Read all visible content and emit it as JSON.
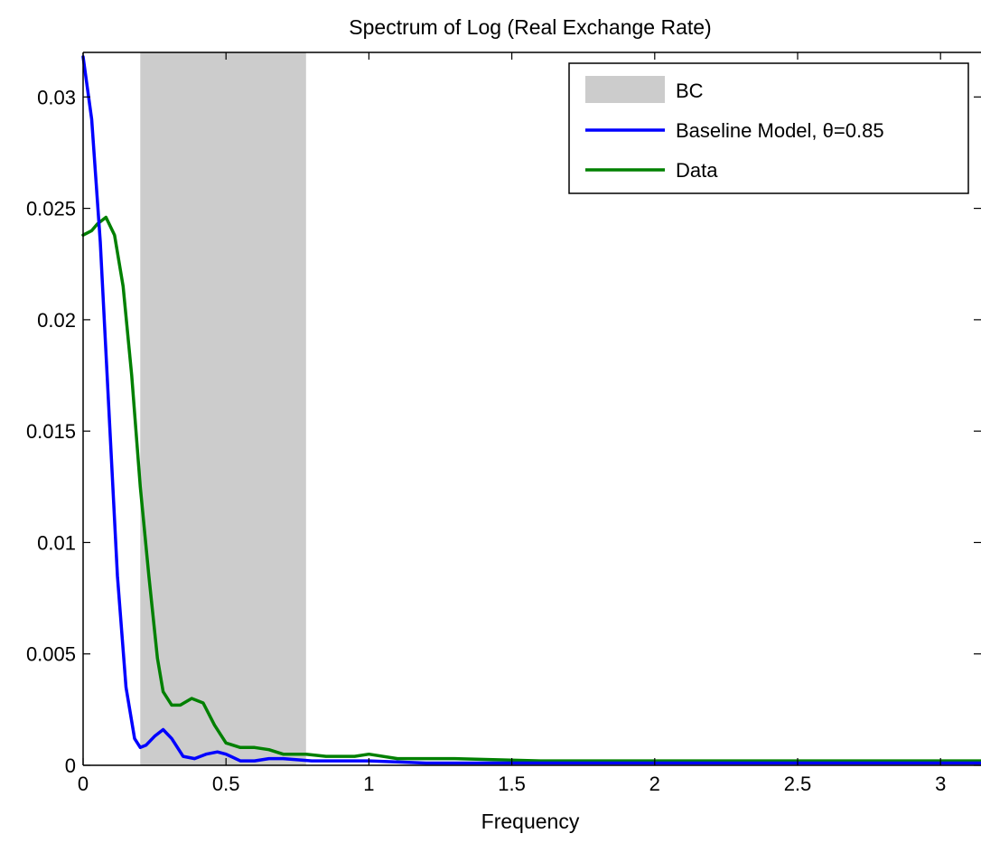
{
  "chart_data": {
    "type": "line",
    "title": "Spectrum of Log (Real Exchange Rate)",
    "xlabel": "Frequency",
    "ylabel": "",
    "xlim": [
      0,
      3.1416
    ],
    "ylim": [
      0,
      0.032
    ],
    "x_ticks": [
      0,
      0.5,
      1,
      1.5,
      2,
      2.5,
      3
    ],
    "x_tick_labels": [
      "0",
      "0.5",
      "1",
      "1.5",
      "2",
      "2.5",
      "3"
    ],
    "y_ticks": [
      0,
      0.005,
      0.01,
      0.015,
      0.02,
      0.025,
      0.03
    ],
    "y_tick_labels": [
      "0",
      "0.005",
      "0.01",
      "0.015",
      "0.02",
      "0.025",
      "0.03"
    ],
    "grid": false,
    "legend_position": "top-right",
    "band": {
      "name": "BC",
      "x_range": [
        0.2,
        0.78
      ],
      "color": "#cccccc"
    },
    "series": [
      {
        "name": "Baseline Model, θ=0.85",
        "color": "#0000ff",
        "x": [
          0,
          0.03,
          0.06,
          0.09,
          0.12,
          0.15,
          0.18,
          0.2,
          0.22,
          0.25,
          0.28,
          0.31,
          0.35,
          0.39,
          0.43,
          0.47,
          0.5,
          0.55,
          0.6,
          0.65,
          0.7,
          0.8,
          0.9,
          1.0,
          1.2,
          1.5,
          2.0,
          2.5,
          3.1416
        ],
        "values": [
          0.0318,
          0.029,
          0.0235,
          0.016,
          0.0085,
          0.0035,
          0.0012,
          0.0008,
          0.0009,
          0.0013,
          0.0016,
          0.0012,
          0.0004,
          0.0003,
          0.0005,
          0.0006,
          0.0005,
          0.0002,
          0.0002,
          0.0003,
          0.0003,
          0.0002,
          0.0002,
          0.0002,
          0.0001,
          0.0001,
          0.0001,
          0.0001,
          0.0001
        ]
      },
      {
        "name": "Data",
        "color": "#008000",
        "x": [
          0,
          0.03,
          0.05,
          0.08,
          0.11,
          0.14,
          0.17,
          0.2,
          0.23,
          0.26,
          0.28,
          0.31,
          0.34,
          0.38,
          0.42,
          0.46,
          0.5,
          0.55,
          0.6,
          0.65,
          0.7,
          0.78,
          0.85,
          0.95,
          1.0,
          1.1,
          1.3,
          1.6,
          1.8,
          2.2,
          2.5,
          3.1416
        ],
        "values": [
          0.0238,
          0.024,
          0.0243,
          0.0246,
          0.0238,
          0.0215,
          0.0175,
          0.0125,
          0.0085,
          0.0048,
          0.0033,
          0.0027,
          0.0027,
          0.003,
          0.0028,
          0.0018,
          0.001,
          0.0008,
          0.0008,
          0.0007,
          0.0005,
          0.0005,
          0.0004,
          0.0004,
          0.0005,
          0.0003,
          0.0003,
          0.0002,
          0.0002,
          0.0002,
          0.0002,
          0.0002
        ]
      }
    ]
  }
}
